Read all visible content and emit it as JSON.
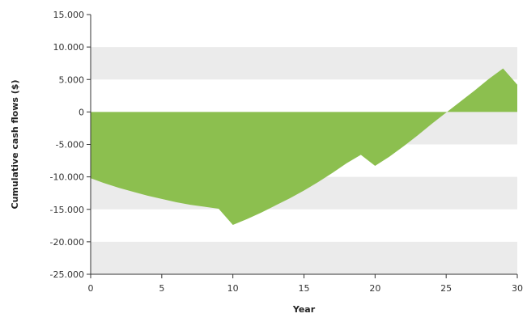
{
  "chart_data": {
    "type": "area",
    "title": "",
    "xlabel": "Year",
    "ylabel": "Cumulative cash flows ($)",
    "xlim": [
      0,
      30
    ],
    "ylim": [
      -25000,
      15000
    ],
    "x_ticks": [
      0,
      5,
      10,
      15,
      20,
      25,
      30
    ],
    "x_tick_labels": [
      "0",
      "5",
      "10",
      "15",
      "20",
      "25",
      "30"
    ],
    "y_ticks": [
      15000,
      10000,
      5000,
      0,
      -5000,
      -10000,
      -15000,
      -20000,
      -25000
    ],
    "y_tick_labels": [
      "15.000",
      "10.000",
      "5.000",
      "0",
      "-5.000",
      "-10.000",
      "-15.000",
      "-20.000",
      "-25.000"
    ],
    "grid": "alternating horizontal bands",
    "legend": "none",
    "colors": {
      "area": "#8cbf4f",
      "band": "#ebebeb",
      "axis": "#333333"
    },
    "series": [
      {
        "x": [
          0,
          1,
          2,
          3,
          4,
          5,
          6,
          7,
          8,
          9,
          10,
          11,
          12,
          13,
          14,
          15,
          16,
          17,
          18,
          19,
          20,
          21,
          22,
          23,
          24,
          25,
          26,
          27,
          28,
          29,
          30
        ],
        "values": [
          -10200,
          -11000,
          -11700,
          -12300,
          -12900,
          -13400,
          -13900,
          -14300,
          -14600,
          -14900,
          -17400,
          -16500,
          -15500,
          -14400,
          -13300,
          -12100,
          -10800,
          -9400,
          -7900,
          -6600,
          -8300,
          -6900,
          -5300,
          -3600,
          -1800,
          -100,
          1600,
          3300,
          5100,
          6700,
          4200
        ]
      }
    ]
  }
}
